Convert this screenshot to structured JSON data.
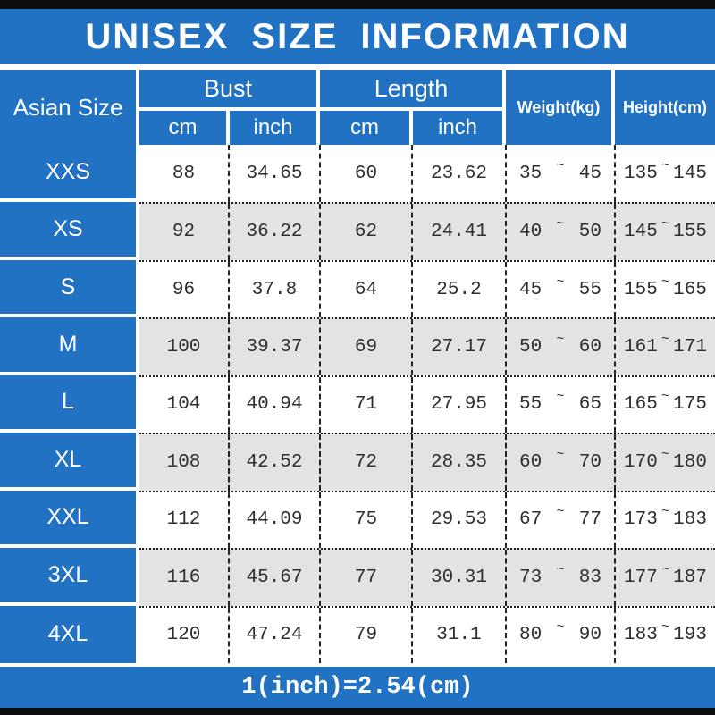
{
  "title": "UNISEX SIZE INFORMATION",
  "header": {
    "size_col": "Asian Size",
    "groups": [
      {
        "label": "Bust",
        "sub": [
          "cm",
          "inch"
        ]
      },
      {
        "label": "Length",
        "sub": [
          "cm",
          "inch"
        ]
      }
    ],
    "weight": "Weight(kg)",
    "height": "Height(cm)"
  },
  "tilde": "~",
  "rows": [
    {
      "size": "XXS",
      "bust_cm": "88",
      "bust_inch": "34.65",
      "length_cm": "60",
      "length_inch": "23.62",
      "weight_min": "35",
      "weight_max": "45",
      "height_min": "135",
      "height_max": "145"
    },
    {
      "size": "XS",
      "bust_cm": "92",
      "bust_inch": "36.22",
      "length_cm": "62",
      "length_inch": "24.41",
      "weight_min": "40",
      "weight_max": "50",
      "height_min": "145",
      "height_max": "155"
    },
    {
      "size": "S",
      "bust_cm": "96",
      "bust_inch": "37.8",
      "length_cm": "64",
      "length_inch": "25.2",
      "weight_min": "45",
      "weight_max": "55",
      "height_min": "155",
      "height_max": "165"
    },
    {
      "size": "M",
      "bust_cm": "100",
      "bust_inch": "39.37",
      "length_cm": "69",
      "length_inch": "27.17",
      "weight_min": "50",
      "weight_max": "60",
      "height_min": "161",
      "height_max": "171"
    },
    {
      "size": "L",
      "bust_cm": "104",
      "bust_inch": "40.94",
      "length_cm": "71",
      "length_inch": "27.95",
      "weight_min": "55",
      "weight_max": "65",
      "height_min": "165",
      "height_max": "175"
    },
    {
      "size": "XL",
      "bust_cm": "108",
      "bust_inch": "42.52",
      "length_cm": "72",
      "length_inch": "28.35",
      "weight_min": "60",
      "weight_max": "70",
      "height_min": "170",
      "height_max": "180"
    },
    {
      "size": "XXL",
      "bust_cm": "112",
      "bust_inch": "44.09",
      "length_cm": "75",
      "length_inch": "29.53",
      "weight_min": "67",
      "weight_max": "77",
      "height_min": "173",
      "height_max": "183"
    },
    {
      "size": "3XL",
      "bust_cm": "116",
      "bust_inch": "45.67",
      "length_cm": "77",
      "length_inch": "30.31",
      "weight_min": "73",
      "weight_max": "83",
      "height_min": "177",
      "height_max": "187"
    },
    {
      "size": "4XL",
      "bust_cm": "120",
      "bust_inch": "47.24",
      "length_cm": "79",
      "length_inch": "31.1",
      "weight_min": "80",
      "weight_max": "90",
      "height_min": "183",
      "height_max": "193"
    }
  ],
  "footer": "1(inch)=2.54(cm)",
  "colors": {
    "accent_blue": "#2272c3",
    "alt_row_gray": "#e3e3e3",
    "bar_black": "#0d0d0d",
    "text_dark": "#2e2e2e",
    "text_white": "#ffffff"
  }
}
